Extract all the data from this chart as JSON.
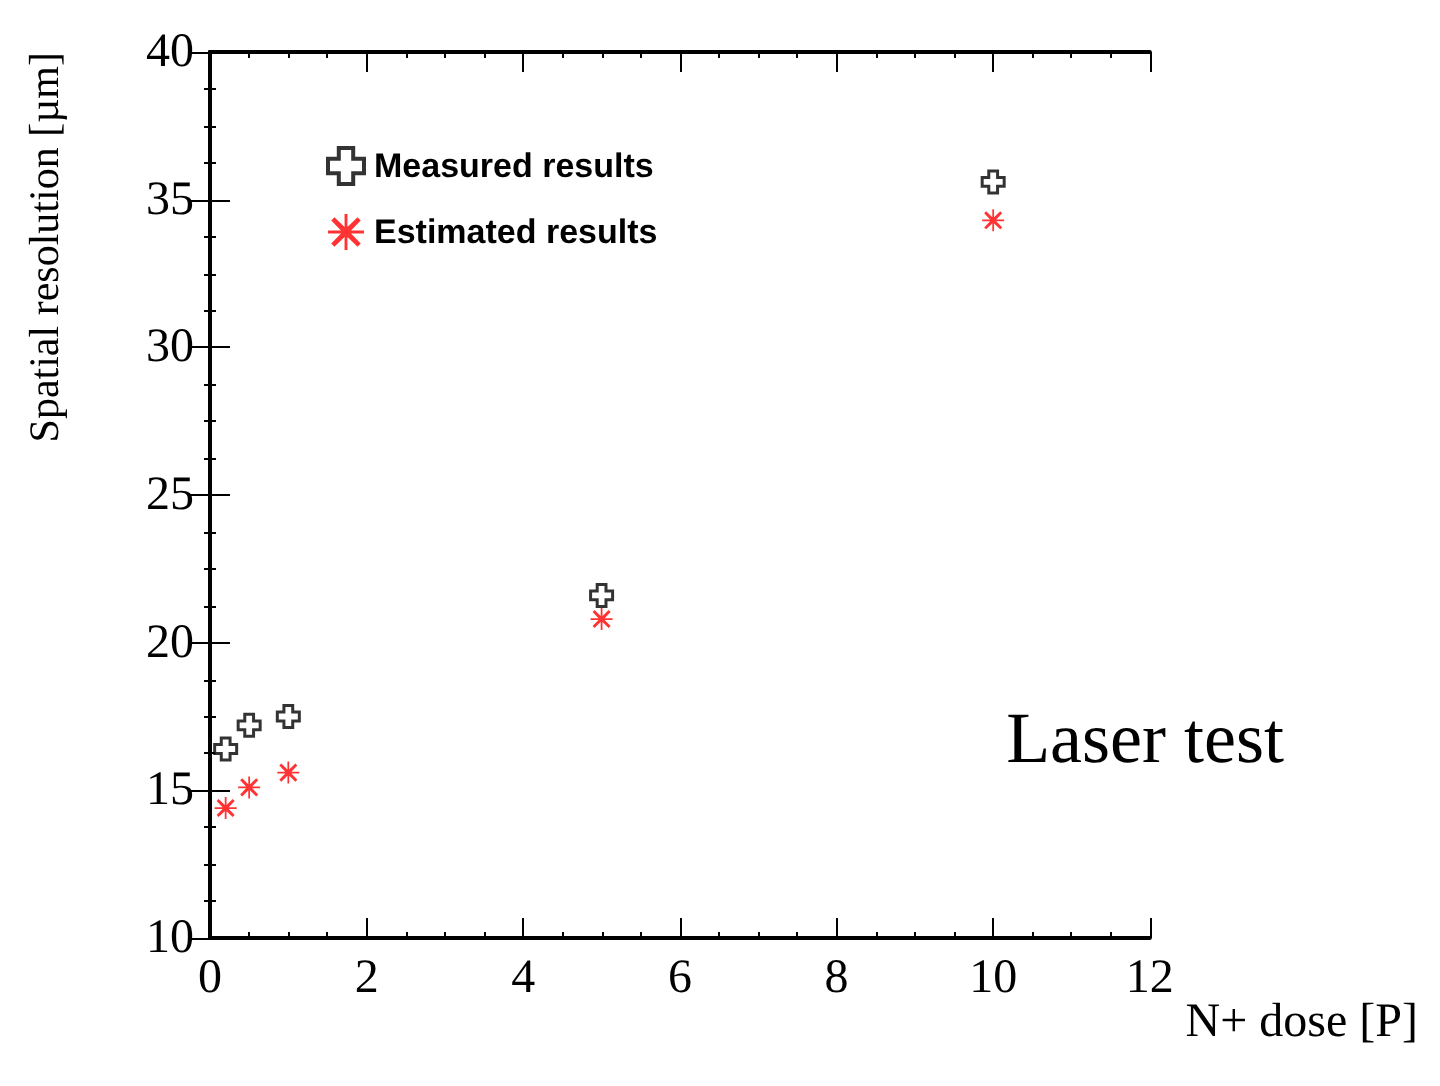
{
  "chart_data": {
    "type": "scatter",
    "xlabel": "N+ dose [P]",
    "ylabel": "Spatial resolution [µm]",
    "xlim": [
      0,
      12
    ],
    "xticks": [
      0,
      2,
      4,
      6,
      8,
      10,
      12
    ],
    "ylim": [
      10,
      40
    ],
    "yticks": [
      10,
      15,
      20,
      25,
      30,
      35,
      40
    ],
    "grid": false,
    "legend": "top left",
    "annotations": [
      "Laser test"
    ],
    "x": [
      0.2,
      0.5,
      1,
      5,
      10
    ],
    "series": [
      {
        "name": "Measured results",
        "color": "#000000",
        "marker": "cross",
        "values": [
          16.4,
          17.2,
          17.5,
          21.6,
          35.6
        ]
      },
      {
        "name": "Estimated results",
        "color": "#ff0000",
        "marker": "star",
        "values": [
          14.4,
          15.1,
          15.6,
          20.8,
          34.3
        ]
      }
    ]
  }
}
